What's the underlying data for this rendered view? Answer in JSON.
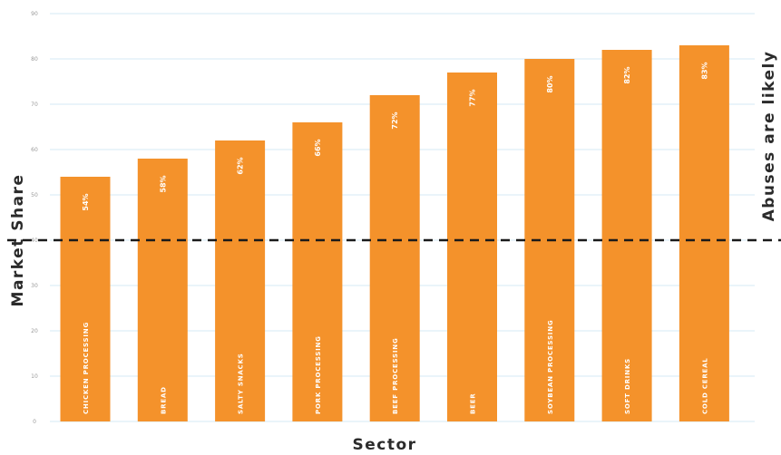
{
  "chart_data": {
    "type": "bar",
    "xlabel": "Sector",
    "ylabel": "Market Share",
    "ylim": [
      0,
      90
    ],
    "yticks": [
      0,
      10,
      20,
      30,
      40,
      50,
      60,
      70,
      80,
      90
    ],
    "grid": true,
    "categories": [
      "CHICKEN PROCESSING",
      "BREAD",
      "SALTY SNACKS",
      "PORK PROCESSING",
      "BEEF PROCESSING",
      "BEER",
      "SOYBEAN PROCESSING",
      "SOFT DRINKS",
      "COLD CEREAL"
    ],
    "values": [
      54,
      58,
      62,
      66,
      72,
      77,
      80,
      82,
      83
    ],
    "value_labels": [
      "54%",
      "58%",
      "62%",
      "66%",
      "72%",
      "77%",
      "80%",
      "82%",
      "83%"
    ],
    "threshold": {
      "value": 40,
      "label": "Abuses are likely"
    },
    "colors": {
      "bar": "#f4922b",
      "grid": "#d6e9f5",
      "threshold": "#1a1a1a"
    }
  }
}
